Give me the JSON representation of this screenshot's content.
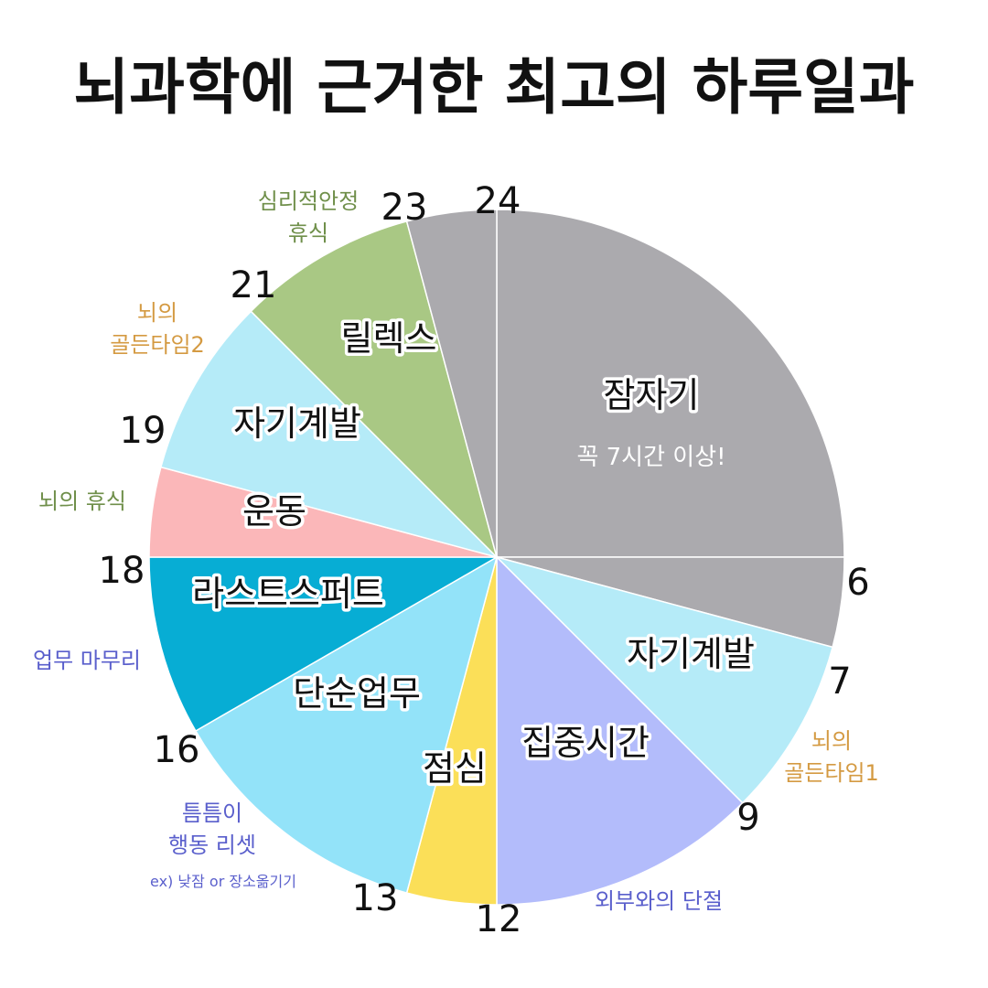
{
  "chart_data": {
    "type": "pie",
    "title": "뇌과학에 근거한 최고의 하루일과",
    "colors": {
      "sleep": "#abaaae",
      "selfdev": "#b5ebf8",
      "focus": "#b3bcfb",
      "lunch": "#fbdf58",
      "simple": "#93e3f9",
      "lastspurt": "#07add4",
      "exercise": "#fbb7b9",
      "relax": "#a9c884",
      "gold": "#d49a42",
      "green": "#6f8f4a",
      "blue": "#5a5fcc"
    },
    "slices": [
      {
        "start": 0,
        "end": 6,
        "label": "잠자기",
        "sublabel": "꼭 7시간 이상!",
        "color_key": "sleep"
      },
      {
        "start": 6,
        "end": 7,
        "label": "",
        "color_key": "sleep"
      },
      {
        "start": 7,
        "end": 9,
        "label": "자기계발",
        "color_key": "selfdev"
      },
      {
        "start": 9,
        "end": 12,
        "label": "집중시간",
        "color_key": "focus"
      },
      {
        "start": 12,
        "end": 13,
        "label": "점심",
        "color_key": "lunch"
      },
      {
        "start": 13,
        "end": 16,
        "label": "단순업무",
        "color_key": "simple"
      },
      {
        "start": 16,
        "end": 18,
        "label": "라스트스퍼트",
        "color_key": "lastspurt"
      },
      {
        "start": 18,
        "end": 19,
        "label": "운동",
        "color_key": "exercise"
      },
      {
        "start": 19,
        "end": 21,
        "label": "자기계발",
        "color_key": "selfdev"
      },
      {
        "start": 21,
        "end": 23,
        "label": "릴렉스",
        "color_key": "relax"
      },
      {
        "start": 23,
        "end": 24,
        "label": "",
        "color_key": "sleep"
      }
    ],
    "hour_ticks": [
      "6",
      "7",
      "9",
      "12",
      "13",
      "16",
      "18",
      "19",
      "21",
      "23",
      "24"
    ],
    "annotations": [
      {
        "lines": [
          "뇌의",
          "골든타임1"
        ],
        "color_key": "gold"
      },
      {
        "lines": [
          "외부와의 단절"
        ],
        "color_key": "blue"
      },
      {
        "lines": [
          "틈틈이",
          "행동 리셋"
        ],
        "small": "ex) 낮잠 or 장소옮기기",
        "color_key": "blue"
      },
      {
        "lines": [
          "업무 마무리"
        ],
        "color_key": "blue"
      },
      {
        "lines": [
          "뇌의 휴식"
        ],
        "color_key": "green"
      },
      {
        "lines": [
          "뇌의",
          "골든타임2"
        ],
        "color_key": "gold"
      },
      {
        "lines": [
          "심리적안정",
          "휴식"
        ],
        "color_key": "green"
      }
    ]
  }
}
